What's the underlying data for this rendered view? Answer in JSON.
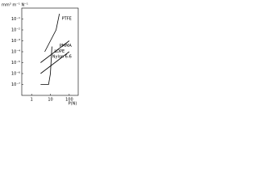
{
  "chart_data": {
    "type": "line",
    "y_label": "mm³ m⁻¹ N⁻¹",
    "x_label": "P(N)",
    "xscale": "log",
    "yscale": "log",
    "xlim": [
      0.3,
      300
    ],
    "ylim": [
      1e-08,
      1
    ],
    "xticks": [
      1,
      10,
      100
    ],
    "yticks": [
      {
        "value": 0.1,
        "label": "10⁻¹"
      },
      {
        "value": 0.01,
        "label": "10⁻²"
      },
      {
        "value": 0.001,
        "label": "10⁻³"
      },
      {
        "value": 0.0001,
        "label": "10⁻⁴"
      },
      {
        "value": 1e-05,
        "label": "10⁻⁵"
      },
      {
        "value": 1e-06,
        "label": "10⁻⁶"
      },
      {
        "value": 1e-07,
        "label": "10⁻⁷"
      }
    ],
    "series": [
      {
        "name": "PTFE",
        "color": "#000000",
        "x": [
          5,
          20,
          30
        ],
        "values": [
          0.0001,
          0.01,
          0.3
        ]
      },
      {
        "name": "PMMA",
        "color": "#000000",
        "x": [
          3,
          100
        ],
        "values": [
          1e-05,
          0.001
        ]
      },
      {
        "name": "Nylon 6-6",
        "color": "#000000",
        "x": [
          3,
          100
        ],
        "values": [
          1e-06,
          0.0001
        ]
      },
      {
        "name": "LDPE",
        "color": "#000000",
        "x": [
          3,
          8,
          10,
          12
        ],
        "values": [
          1e-07,
          1e-07,
          1e-06,
          0.0003
        ]
      }
    ]
  }
}
